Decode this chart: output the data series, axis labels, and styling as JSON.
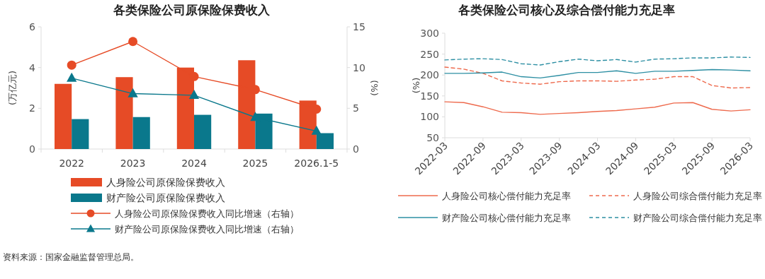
{
  "chart_data": [
    {
      "type": "bar",
      "title": "各类保险公司原保险保费收入",
      "ylabel": "(万亿元)",
      "y2label": "(%)",
      "categories": [
        "2022",
        "2023",
        "2024",
        "2025",
        "2026.1-5"
      ],
      "ylim": [
        0,
        6
      ],
      "yticks": [
        0,
        2,
        4,
        6
      ],
      "y2lim": [
        0,
        15
      ],
      "y2ticks": [
        0,
        5,
        10,
        15
      ],
      "series": [
        {
          "name": "人身险公司原保险保费收入",
          "type": "bar",
          "color": "#e64b26",
          "values": [
            3.2,
            3.53,
            4.0,
            4.36,
            2.38
          ]
        },
        {
          "name": "财产险公司原保险保费收入",
          "type": "bar",
          "color": "#0a788c",
          "values": [
            1.47,
            1.57,
            1.68,
            1.74,
            0.78
          ]
        },
        {
          "name": "人身险公司原保险保费收入同比增速（右轴）",
          "type": "line",
          "axis": "y2",
          "marker": "circle",
          "color": "#e64b26",
          "values": [
            10.3,
            13.2,
            8.9,
            7.3,
            4.9
          ]
        },
        {
          "name": "财产险公司原保险保费收入同比增速（右轴）",
          "type": "line",
          "axis": "y2",
          "marker": "triangle",
          "color": "#0a788c",
          "values": [
            8.7,
            6.8,
            6.6,
            3.9,
            2.2
          ]
        }
      ],
      "legend": "bottom",
      "grid": false,
      "annotations": [
        "资料来源：国家金融监督管理总局。"
      ]
    },
    {
      "type": "line",
      "title": "各类保险公司核心及综合偿付能力充足率",
      "ylabel": "(%)",
      "x": [
        "2022-03",
        "2022-06",
        "2022-09",
        "2022-12",
        "2023-03",
        "2023-06",
        "2023-09",
        "2023-12",
        "2024-03",
        "2024-06",
        "2024-09",
        "2024-12",
        "2025-03",
        "2025-06",
        "2025-09",
        "2025-12",
        "2026-03"
      ],
      "xlim": [
        "2022-03",
        "2026-03"
      ],
      "xticks": [
        "2022-03",
        "2022-09",
        "2023-03",
        "2023-09",
        "2024-03",
        "2024-09",
        "2025-03",
        "2025-09",
        "2026-03"
      ],
      "ylim": [
        50,
        300
      ],
      "yticks": [
        50,
        100,
        150,
        200,
        250,
        300
      ],
      "series": [
        {
          "name": "人身险公司核心偿付能力充足率",
          "color": "#ee6a4d",
          "line_style": "solid",
          "values": [
            136,
            134,
            124,
            111,
            110,
            106,
            108,
            110,
            113,
            115,
            119,
            123,
            133,
            134,
            118,
            114,
            117
          ]
        },
        {
          "name": "人身险公司综合偿付能力充足率",
          "color": "#ee6a4d",
          "line_style": "dashed",
          "values": [
            219,
            214,
            204,
            186,
            181,
            178,
            184,
            186,
            186,
            185,
            188,
            190,
            196,
            196,
            175,
            169,
            170
          ]
        },
        {
          "name": "财产险公司核心偿付能力充足率",
          "color": "#2d8fa3",
          "line_style": "solid",
          "values": [
            204,
            204,
            205,
            207,
            196,
            193,
            199,
            206,
            206,
            210,
            204,
            209,
            209,
            211,
            213,
            212,
            210
          ]
        },
        {
          "name": "财产险公司综合偿付能力充足率",
          "color": "#2d8fa3",
          "line_style": "dashed",
          "values": [
            236,
            238,
            239,
            237,
            227,
            224,
            232,
            238,
            234,
            237,
            231,
            238,
            239,
            241,
            241,
            243,
            242
          ]
        }
      ],
      "legend": "bottom",
      "grid": false
    }
  ]
}
